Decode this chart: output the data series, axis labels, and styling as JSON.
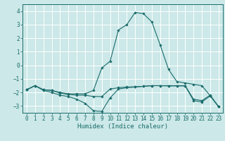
{
  "title": "",
  "xlabel": "Humidex (Indice chaleur)",
  "bg_color": "#cce8e8",
  "grid_color": "#ffffff",
  "line_color": "#1a6b6b",
  "line1": {
    "x": [
      0,
      1,
      2,
      3,
      4,
      5,
      6,
      7,
      8,
      9,
      10,
      11,
      12,
      13,
      14,
      15,
      16,
      17,
      18,
      19,
      20,
      21,
      22,
      23
    ],
    "y": [
      -1.8,
      -1.5,
      -1.85,
      -2.0,
      -2.2,
      -2.3,
      -2.5,
      -2.8,
      -3.35,
      -3.4,
      -2.4,
      -1.75,
      -1.65,
      -1.6,
      -1.55,
      -1.5,
      -1.5,
      -1.52,
      -1.52,
      -1.52,
      -2.6,
      -2.7,
      -2.25,
      -3.05
    ]
  },
  "line2": {
    "x": [
      0,
      1,
      2,
      3,
      4,
      5,
      6,
      7,
      8,
      9,
      10,
      11,
      12,
      13,
      14,
      15,
      16,
      17,
      18,
      19,
      20,
      21,
      22,
      23
    ],
    "y": [
      -1.8,
      -1.5,
      -1.8,
      -1.85,
      -2.05,
      -2.15,
      -2.2,
      -2.2,
      -2.3,
      -2.3,
      -1.75,
      -1.65,
      -1.6,
      -1.58,
      -1.55,
      -1.5,
      -1.5,
      -1.5,
      -1.5,
      -1.5,
      -2.5,
      -2.6,
      -2.2,
      -3.05
    ]
  },
  "line3": {
    "x": [
      0,
      1,
      2,
      3,
      4,
      5,
      6,
      7,
      8,
      9,
      10,
      11,
      12,
      13,
      14,
      15,
      16,
      17,
      18,
      19,
      20,
      21,
      22,
      23
    ],
    "y": [
      -1.8,
      -1.5,
      -1.8,
      -1.85,
      -2.0,
      -2.1,
      -2.1,
      -2.1,
      -1.85,
      -0.2,
      0.3,
      2.6,
      3.0,
      3.9,
      3.8,
      3.2,
      1.5,
      -0.3,
      -1.2,
      -1.3,
      -1.4,
      -1.5,
      -2.25,
      -3.05
    ]
  },
  "xlim": [
    -0.5,
    23.5
  ],
  "ylim": [
    -3.5,
    4.5
  ],
  "yticks": [
    -3,
    -2,
    -1,
    0,
    1,
    2,
    3,
    4
  ],
  "xticks": [
    0,
    1,
    2,
    3,
    4,
    5,
    6,
    7,
    8,
    9,
    10,
    11,
    12,
    13,
    14,
    15,
    16,
    17,
    18,
    19,
    20,
    21,
    22,
    23
  ]
}
